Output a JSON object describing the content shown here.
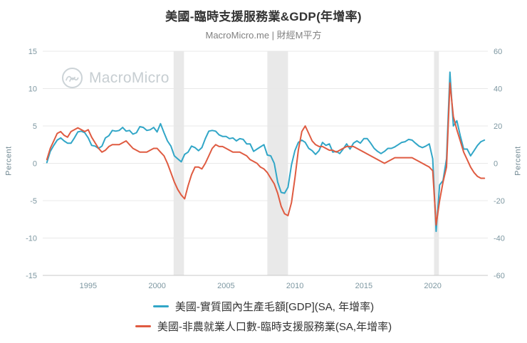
{
  "title": "美國-臨時支援服務業&GDP(年增率)",
  "subtitle": "MacroMicro.me | 財經M平方",
  "watermark": "MacroMicro",
  "chart_data": {
    "type": "line",
    "title": "美國-臨時支援服務業&GDP(年增率)",
    "x_range": [
      1991.7,
      2024.0
    ],
    "x_ticks": [
      1995,
      2000,
      2005,
      2010,
      2015,
      2020
    ],
    "left_axis": {
      "label": "Percent",
      "min": -15,
      "max": 15,
      "ticks": [
        15,
        10,
        5,
        0,
        -5,
        -10,
        -15
      ]
    },
    "right_axis": {
      "label": "Percent",
      "min": -60,
      "max": 60,
      "ticks": [
        60,
        40,
        20,
        0,
        -20,
        -40,
        -60
      ]
    },
    "recession_bands": [
      [
        2001.2,
        2001.95
      ],
      [
        2008.0,
        2009.5
      ],
      [
        2020.1,
        2020.45
      ]
    ],
    "colors": {
      "grid": "#e8e8e8",
      "band": "#e9e9e9",
      "axis_text": "#7d97a1",
      "axis_line": "#c9c9c9"
    },
    "series": [
      {
        "name": "美國-實質國內生產毛額[GDP](SA, 年增率)",
        "axis": "left",
        "color": "#31a6c7",
        "points": [
          [
            1992.0,
            0.1
          ],
          [
            1992.25,
            1.6
          ],
          [
            1992.5,
            2.4
          ],
          [
            1992.75,
            3.1
          ],
          [
            1993.0,
            3.4
          ],
          [
            1993.25,
            3.0
          ],
          [
            1993.5,
            2.7
          ],
          [
            1993.75,
            2.7
          ],
          [
            1994.0,
            3.4
          ],
          [
            1994.25,
            4.2
          ],
          [
            1994.5,
            4.3
          ],
          [
            1994.75,
            4.1
          ],
          [
            1995.0,
            3.4
          ],
          [
            1995.25,
            2.4
          ],
          [
            1995.5,
            2.3
          ],
          [
            1995.75,
            2.0
          ],
          [
            1996.0,
            2.3
          ],
          [
            1996.25,
            3.4
          ],
          [
            1996.5,
            3.7
          ],
          [
            1996.75,
            4.4
          ],
          [
            1997.0,
            4.3
          ],
          [
            1997.25,
            4.4
          ],
          [
            1997.5,
            4.8
          ],
          [
            1997.75,
            4.3
          ],
          [
            1998.0,
            4.4
          ],
          [
            1998.25,
            3.9
          ],
          [
            1998.5,
            4.1
          ],
          [
            1998.75,
            4.9
          ],
          [
            1999.0,
            4.8
          ],
          [
            1999.25,
            4.4
          ],
          [
            1999.5,
            4.5
          ],
          [
            1999.75,
            4.8
          ],
          [
            2000.0,
            4.2
          ],
          [
            2000.25,
            5.3
          ],
          [
            2000.5,
            4.1
          ],
          [
            2000.75,
            3.0
          ],
          [
            2001.0,
            2.3
          ],
          [
            2001.25,
            1.0
          ],
          [
            2001.5,
            0.6
          ],
          [
            2001.75,
            0.2
          ],
          [
            2002.0,
            1.2
          ],
          [
            2002.25,
            1.5
          ],
          [
            2002.5,
            2.3
          ],
          [
            2002.75,
            2.1
          ],
          [
            2003.0,
            1.7
          ],
          [
            2003.25,
            2.1
          ],
          [
            2003.5,
            3.3
          ],
          [
            2003.75,
            4.3
          ],
          [
            2004.0,
            4.4
          ],
          [
            2004.25,
            4.3
          ],
          [
            2004.5,
            3.8
          ],
          [
            2004.75,
            3.6
          ],
          [
            2005.0,
            3.6
          ],
          [
            2005.25,
            3.3
          ],
          [
            2005.5,
            3.4
          ],
          [
            2005.75,
            3.0
          ],
          [
            2006.0,
            3.3
          ],
          [
            2006.25,
            3.2
          ],
          [
            2006.5,
            2.6
          ],
          [
            2006.75,
            2.6
          ],
          [
            2007.0,
            1.6
          ],
          [
            2007.25,
            1.9
          ],
          [
            2007.5,
            2.2
          ],
          [
            2007.75,
            2.5
          ],
          [
            2008.0,
            1.1
          ],
          [
            2008.25,
            1.0
          ],
          [
            2008.5,
            0.0
          ],
          [
            2008.75,
            -2.5
          ],
          [
            2009.0,
            -3.9
          ],
          [
            2009.25,
            -4.0
          ],
          [
            2009.5,
            -3.2
          ],
          [
            2009.75,
            -0.2
          ],
          [
            2010.0,
            1.7
          ],
          [
            2010.25,
            2.8
          ],
          [
            2010.5,
            3.1
          ],
          [
            2010.75,
            2.8
          ],
          [
            2011.0,
            2.0
          ],
          [
            2011.25,
            1.7
          ],
          [
            2011.5,
            1.2
          ],
          [
            2011.75,
            1.7
          ],
          [
            2012.0,
            2.8
          ],
          [
            2012.25,
            2.4
          ],
          [
            2012.5,
            2.6
          ],
          [
            2012.75,
            1.5
          ],
          [
            2013.0,
            1.6
          ],
          [
            2013.25,
            1.3
          ],
          [
            2013.5,
            1.9
          ],
          [
            2013.75,
            2.6
          ],
          [
            2014.0,
            1.9
          ],
          [
            2014.25,
            2.7
          ],
          [
            2014.5,
            3.0
          ],
          [
            2014.75,
            2.7
          ],
          [
            2015.0,
            3.3
          ],
          [
            2015.25,
            3.3
          ],
          [
            2015.5,
            2.7
          ],
          [
            2015.75,
            2.0
          ],
          [
            2016.0,
            1.6
          ],
          [
            2016.25,
            1.3
          ],
          [
            2016.5,
            1.6
          ],
          [
            2016.75,
            2.0
          ],
          [
            2017.0,
            2.0
          ],
          [
            2017.25,
            2.2
          ],
          [
            2017.5,
            2.5
          ],
          [
            2017.75,
            2.8
          ],
          [
            2018.0,
            2.9
          ],
          [
            2018.25,
            3.2
          ],
          [
            2018.5,
            3.1
          ],
          [
            2018.75,
            2.7
          ],
          [
            2019.0,
            2.3
          ],
          [
            2019.25,
            2.1
          ],
          [
            2019.5,
            2.3
          ],
          [
            2019.75,
            2.6
          ],
          [
            2020.0,
            0.6
          ],
          [
            2020.25,
            -9.1
          ],
          [
            2020.5,
            -2.9
          ],
          [
            2020.75,
            -2.3
          ],
          [
            2021.0,
            0.6
          ],
          [
            2021.25,
            12.2
          ],
          [
            2021.5,
            5.0
          ],
          [
            2021.75,
            5.7
          ],
          [
            2022.0,
            3.7
          ],
          [
            2022.25,
            1.9
          ],
          [
            2022.5,
            1.9
          ],
          [
            2022.75,
            1.0
          ],
          [
            2023.0,
            1.7
          ],
          [
            2023.25,
            2.4
          ],
          [
            2023.5,
            2.9
          ],
          [
            2023.75,
            3.1
          ]
        ]
      },
      {
        "name": "美國-非農就業人口數-臨時支援服務業(SA,年增率)",
        "axis": "right",
        "color": "#df5b41",
        "points": [
          [
            1992.0,
            2
          ],
          [
            1992.25,
            8
          ],
          [
            1992.5,
            12
          ],
          [
            1992.75,
            16
          ],
          [
            1993.0,
            17
          ],
          [
            1993.25,
            15
          ],
          [
            1993.5,
            14
          ],
          [
            1993.75,
            17
          ],
          [
            1994.0,
            18
          ],
          [
            1994.25,
            19
          ],
          [
            1994.5,
            18
          ],
          [
            1994.75,
            17
          ],
          [
            1995.0,
            18
          ],
          [
            1995.25,
            14
          ],
          [
            1995.5,
            11
          ],
          [
            1995.75,
            8
          ],
          [
            1996.0,
            6
          ],
          [
            1996.25,
            7
          ],
          [
            1996.5,
            9
          ],
          [
            1996.75,
            10
          ],
          [
            1997.0,
            10
          ],
          [
            1997.25,
            10
          ],
          [
            1997.5,
            11
          ],
          [
            1997.75,
            12
          ],
          [
            1998.0,
            10
          ],
          [
            1998.25,
            8
          ],
          [
            1998.5,
            7
          ],
          [
            1998.75,
            6
          ],
          [
            1999.0,
            6
          ],
          [
            1999.25,
            6
          ],
          [
            1999.5,
            7
          ],
          [
            1999.75,
            8
          ],
          [
            2000.0,
            8
          ],
          [
            2000.25,
            6
          ],
          [
            2000.5,
            4
          ],
          [
            2000.75,
            0
          ],
          [
            2001.0,
            -5
          ],
          [
            2001.25,
            -10
          ],
          [
            2001.5,
            -14
          ],
          [
            2001.75,
            -17
          ],
          [
            2002.0,
            -19
          ],
          [
            2002.25,
            -12
          ],
          [
            2002.5,
            -6
          ],
          [
            2002.75,
            -2
          ],
          [
            2003.0,
            -2
          ],
          [
            2003.25,
            -3
          ],
          [
            2003.5,
            0
          ],
          [
            2003.75,
            4
          ],
          [
            2004.0,
            8
          ],
          [
            2004.25,
            10
          ],
          [
            2004.5,
            9
          ],
          [
            2004.75,
            9
          ],
          [
            2005.0,
            8
          ],
          [
            2005.25,
            7
          ],
          [
            2005.5,
            6
          ],
          [
            2005.75,
            6
          ],
          [
            2006.0,
            6
          ],
          [
            2006.25,
            5
          ],
          [
            2006.5,
            4
          ],
          [
            2006.75,
            2
          ],
          [
            2007.0,
            1
          ],
          [
            2007.25,
            0
          ],
          [
            2007.5,
            -2
          ],
          [
            2007.75,
            -3
          ],
          [
            2008.0,
            -5
          ],
          [
            2008.25,
            -8
          ],
          [
            2008.5,
            -11
          ],
          [
            2008.75,
            -16
          ],
          [
            2009.0,
            -23
          ],
          [
            2009.25,
            -27
          ],
          [
            2009.5,
            -28
          ],
          [
            2009.75,
            -21
          ],
          [
            2010.0,
            -8
          ],
          [
            2010.25,
            7
          ],
          [
            2010.5,
            17
          ],
          [
            2010.75,
            20
          ],
          [
            2011.0,
            16
          ],
          [
            2011.25,
            12
          ],
          [
            2011.5,
            10
          ],
          [
            2011.75,
            9
          ],
          [
            2012.0,
            9
          ],
          [
            2012.25,
            8
          ],
          [
            2012.5,
            7
          ],
          [
            2012.75,
            7
          ],
          [
            2013.0,
            6
          ],
          [
            2013.25,
            7
          ],
          [
            2013.5,
            8
          ],
          [
            2013.75,
            9
          ],
          [
            2014.0,
            9
          ],
          [
            2014.25,
            9
          ],
          [
            2014.5,
            8
          ],
          [
            2014.75,
            7
          ],
          [
            2015.0,
            6
          ],
          [
            2015.25,
            5
          ],
          [
            2015.5,
            4
          ],
          [
            2015.75,
            3
          ],
          [
            2016.0,
            2
          ],
          [
            2016.25,
            1
          ],
          [
            2016.5,
            0
          ],
          [
            2016.75,
            1
          ],
          [
            2017.0,
            2
          ],
          [
            2017.25,
            3
          ],
          [
            2017.5,
            3
          ],
          [
            2017.75,
            3
          ],
          [
            2018.0,
            3
          ],
          [
            2018.25,
            3
          ],
          [
            2018.5,
            3
          ],
          [
            2018.75,
            2
          ],
          [
            2019.0,
            1
          ],
          [
            2019.25,
            0
          ],
          [
            2019.5,
            -1
          ],
          [
            2019.75,
            -2
          ],
          [
            2020.0,
            -4
          ],
          [
            2020.25,
            -33
          ],
          [
            2020.5,
            -20
          ],
          [
            2020.75,
            -10
          ],
          [
            2021.0,
            -2
          ],
          [
            2021.25,
            43
          ],
          [
            2021.5,
            25
          ],
          [
            2021.75,
            18
          ],
          [
            2022.0,
            12
          ],
          [
            2022.25,
            6
          ],
          [
            2022.5,
            2
          ],
          [
            2022.75,
            -2
          ],
          [
            2023.0,
            -5
          ],
          [
            2023.25,
            -7
          ],
          [
            2023.5,
            -8
          ],
          [
            2023.75,
            -8
          ]
        ]
      }
    ]
  }
}
